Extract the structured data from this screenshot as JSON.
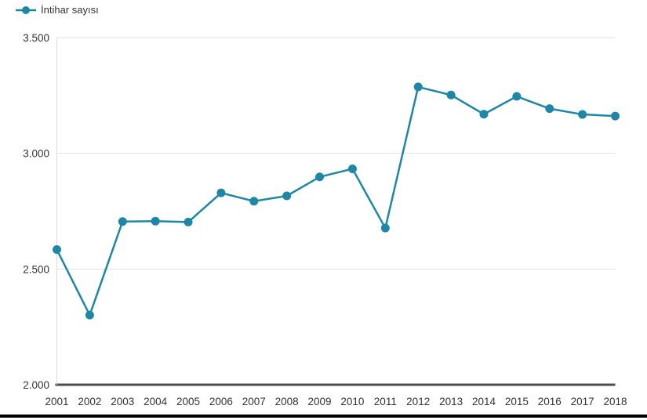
{
  "legend": {
    "label": "İntihar sayısı",
    "marker_icon": "line-dot-marker-icon"
  },
  "colors": {
    "series": "#1E87A6",
    "grid": "#E1E1E1",
    "axis_line": "#D9D9D9",
    "baseline": "#4D4D4D",
    "text": "#333333",
    "background": "#FFFFFF"
  },
  "chart_data": {
    "type": "line",
    "title": "",
    "categories": [
      "2001",
      "2002",
      "2003",
      "2004",
      "2005",
      "2006",
      "2007",
      "2008",
      "2009",
      "2010",
      "2011",
      "2012",
      "2013",
      "2014",
      "2015",
      "2016",
      "2017",
      "2018"
    ],
    "series": [
      {
        "name": "İntihar sayısı",
        "color": "#1E87A6",
        "values": [
          2584,
          2301,
          2705,
          2707,
          2703,
          2829,
          2793,
          2816,
          2898,
          2933,
          2677,
          3287,
          3252,
          3169,
          3246,
          3193,
          3168,
          3161
        ]
      }
    ],
    "xlabel": "",
    "ylabel": "",
    "ylim": [
      2000,
      3500
    ],
    "yticks": [
      {
        "value": 3500,
        "label": "3.500"
      },
      {
        "value": 3000,
        "label": "3.000"
      },
      {
        "value": 2500,
        "label": "2.500"
      },
      {
        "value": 2000,
        "label": "2.000"
      }
    ],
    "grid": true,
    "legend_position": "top-left",
    "marker_style": "circle"
  }
}
